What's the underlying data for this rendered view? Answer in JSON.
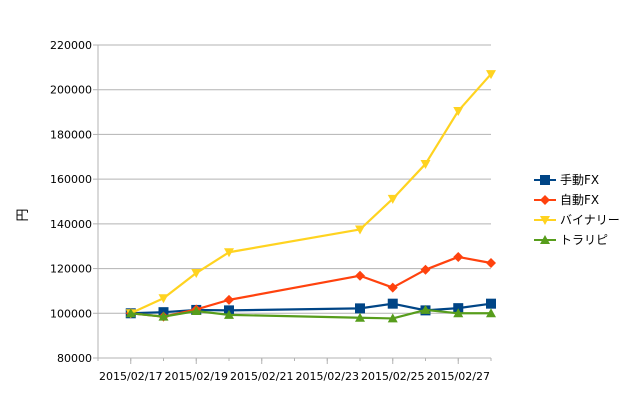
{
  "chart_data": {
    "type": "line",
    "title": "",
    "xlabel": "",
    "ylabel": "円",
    "ylim": [
      80000,
      220000
    ],
    "y_ticks": [
      80000,
      100000,
      120000,
      140000,
      160000,
      180000,
      200000,
      220000
    ],
    "y_tick_labels": [
      "80000",
      "100000",
      "120000",
      "140000",
      "160000",
      "180000",
      "200000",
      "220000"
    ],
    "x_ticks": [
      "2015/02/17",
      "2015/02/19",
      "2015/02/21",
      "2015/02/23",
      "2015/02/25",
      "2015/02/27"
    ],
    "xlim": [
      "2015/02/16",
      "2015/02/28"
    ],
    "x": [
      "2015/02/17",
      "2015/02/18",
      "2015/02/19",
      "2015/02/20",
      "2015/02/24",
      "2015/02/25",
      "2015/02/26",
      "2015/02/27",
      "2015/02/28"
    ],
    "grid": "horizontal",
    "legend_position": "right",
    "series": [
      {
        "name": "手動FX",
        "color": "#004586",
        "marker": "square",
        "values": [
          100000,
          100500,
          101500,
          101300,
          102200,
          104300,
          101300,
          102300,
          104300
        ]
      },
      {
        "name": "自動FX",
        "color": "#ff420e",
        "marker": "diamond",
        "values": [
          100000,
          98500,
          101700,
          106000,
          116800,
          111500,
          119500,
          125200,
          122500
        ]
      },
      {
        "name": "バイナリー",
        "color": "#ffd320",
        "marker": "triangle-down",
        "values": [
          100000,
          106700,
          118000,
          127300,
          137500,
          151200,
          166800,
          190500,
          207000
        ]
      },
      {
        "name": "トラリピ",
        "color": "#579d1c",
        "marker": "triangle-up",
        "values": [
          100000,
          98500,
          101000,
          99300,
          98000,
          97700,
          101500,
          100000,
          100000
        ]
      }
    ]
  }
}
